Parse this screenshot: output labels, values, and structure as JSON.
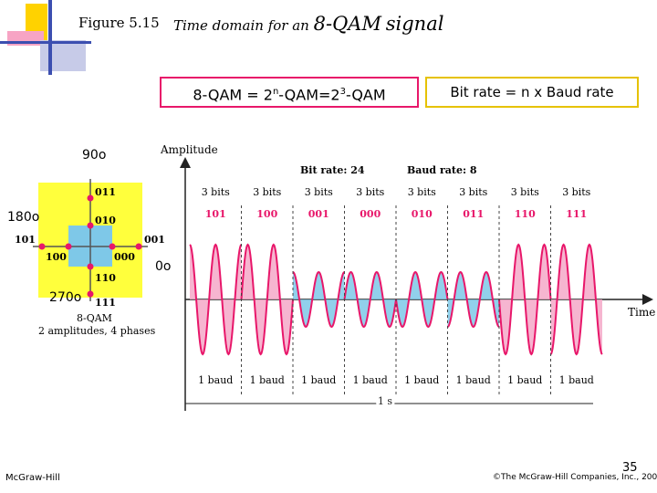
{
  "title": {
    "figure": "Figure 5.15",
    "caption_prefix": "Time domain for an",
    "caption_big": "8-QAM",
    "caption_suffix": "signal"
  },
  "formula_box": {
    "p1": "8-QAM = 2",
    "sup1": "n",
    "p2": "-QAM=2",
    "sup2": "3",
    "p3": "-QAM"
  },
  "bitrate_box": "Bit rate = n x Baud rate",
  "constellation": {
    "angle_90": "90o",
    "angle_180": "180o",
    "angle_0": "0o",
    "angle_270": "270o",
    "points": {
      "p011": "011",
      "p010": "010",
      "p101": "101",
      "p001": "001",
      "p100": "100",
      "p000": "000",
      "p110": "110",
      "p111": "111"
    },
    "caption": "8-QAM",
    "subcaption": "2 amplitudes, 4 phases"
  },
  "time_chart": {
    "amplitude_label": "Amplitude",
    "time_label": "Time",
    "bit_rate": "Bit rate: 24",
    "baud_rate": "Baud rate: 8",
    "bits_label": "3 bits",
    "symbols": [
      "101",
      "100",
      "001",
      "000",
      "010",
      "011",
      "110",
      "111"
    ],
    "baud_label": "1 baud",
    "duration_label": "1 s"
  },
  "footer": {
    "left": "McGraw-Hill",
    "right": "©The McGraw-Hill Companies, Inc., 2004",
    "page": "35"
  },
  "colors": {
    "pink": "#e8176a",
    "yellow": "#ffff3c",
    "blue": "#7ec8e8",
    "light_pink": "#f4a8c8",
    "lavender": "#c7cbe8"
  }
}
